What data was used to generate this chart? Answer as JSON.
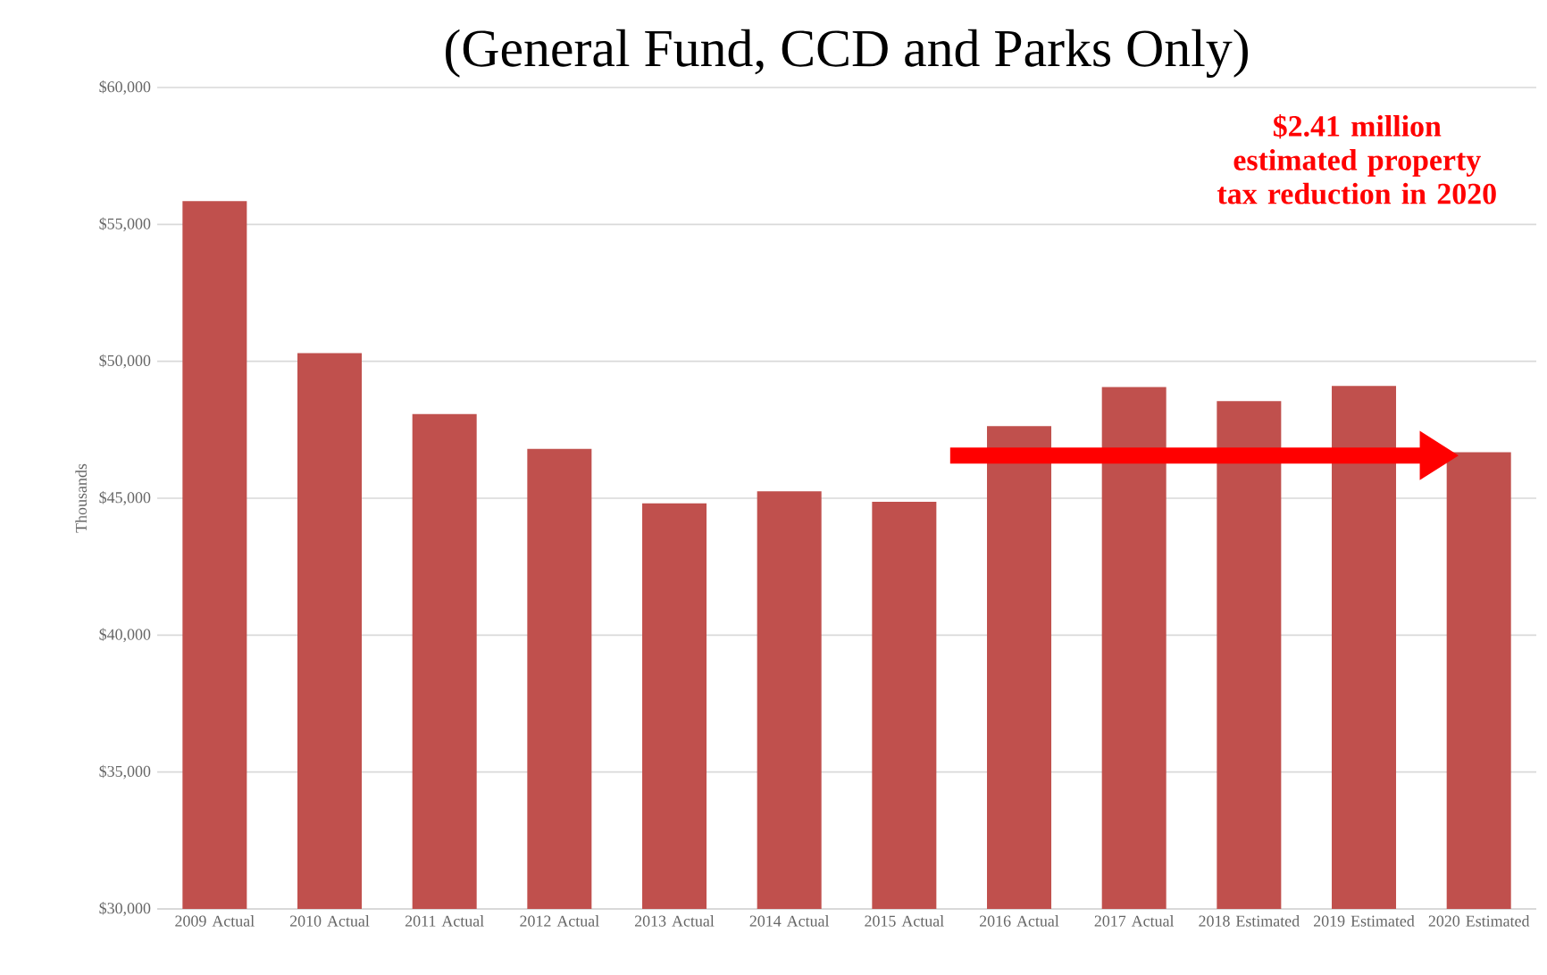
{
  "chart_data": {
    "type": "bar",
    "title": "(General Fund, CCD and Parks Only)",
    "ylabel": "Thousands",
    "categories": [
      "2009 Actual",
      "2010 Actual",
      "2011 Actual",
      "2012 Actual",
      "2013 Actual",
      "2014 Actual",
      "2015 Actual",
      "2016 Actual",
      "2017 Actual",
      "2018 Estimated",
      "2019 Estimated",
      "2020 Estimated"
    ],
    "values": [
      55850,
      50300,
      48070,
      46800,
      44810,
      45250,
      44870,
      47630,
      49060,
      48550,
      49100,
      46680
    ],
    "color": "#c0504d",
    "ylim": [
      30000,
      60000
    ],
    "yticks": [
      {
        "value": 30000,
        "label": "$30,000"
      },
      {
        "value": 35000,
        "label": "$35,000"
      },
      {
        "value": 40000,
        "label": "$40,000"
      },
      {
        "value": 45000,
        "label": "$45,000"
      },
      {
        "value": 50000,
        "label": "$50,000"
      },
      {
        "value": 55000,
        "label": "$55,000"
      },
      {
        "value": 60000,
        "label": "$60,000"
      }
    ],
    "grid": "y",
    "annotations": [
      "$2.41 million estimated property tax reduction in 2020"
    ]
  }
}
